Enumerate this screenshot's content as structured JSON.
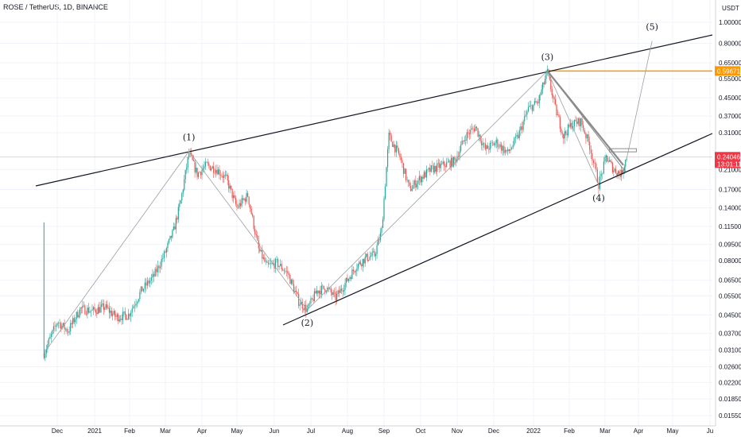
{
  "header": {
    "symbol": "ROSE / TetherUS",
    "interval": "1D",
    "exchange": "BINANCE"
  },
  "colors": {
    "up": "#26a69a",
    "down": "#ef5350",
    "trendline": "#131722",
    "wave_path": "#9e9e9e",
    "resistance": "#ff9800",
    "current_price": "#f23645",
    "grid": "#f0f3fa"
  },
  "chart_data": {
    "type": "candlestick",
    "price_scale": "log",
    "currency": "USDT",
    "y_ticks": [
      "1.00000",
      "0.80000",
      "0.65000",
      "0.55000",
      "0.45000",
      "0.37000",
      "0.31000",
      "0.21000",
      "0.17000",
      "0.14000",
      "0.11500",
      "0.09500",
      "0.08000",
      "0.06500",
      "0.05500",
      "0.04500",
      "0.03700",
      "0.03100",
      "0.02600",
      "0.02200",
      "0.01850",
      "0.01550"
    ],
    "x_ticks": [
      "Dec",
      "2021",
      "Feb",
      "Mar",
      "Apr",
      "May",
      "Jun",
      "Jul",
      "Aug",
      "Sep",
      "Oct",
      "Nov",
      "Dec",
      "2022",
      "Feb",
      "Mar",
      "Apr",
      "May",
      "Ju"
    ],
    "price_tags": [
      {
        "label": "0.59671",
        "value": 0.59671,
        "kind": "resistance"
      },
      {
        "label": "0.24046",
        "value": 0.24046,
        "countdown": "13:01:11",
        "kind": "current"
      }
    ],
    "wave_points": [
      {
        "label": "(1)",
        "date": "2021-03-21",
        "price": 0.255
      },
      {
        "label": "(2)",
        "date": "2021-06-28",
        "price": 0.0475
      },
      {
        "label": "(3)",
        "date": "2022-01-13",
        "price": 0.597
      },
      {
        "label": "(4)",
        "date": "2022-02-24",
        "price": 0.178
      },
      {
        "label": "(5)",
        "date": "2022-04-13",
        "price": 0.82
      }
    ],
    "series": [
      {
        "points": [
          [
            "2020-11-20",
            0.03
          ],
          [
            "2020-12-01",
            0.042
          ],
          [
            "2020-12-10",
            0.038
          ],
          [
            "2020-12-20",
            0.048
          ],
          [
            "2020-12-31",
            0.047
          ],
          [
            "2021-01-10",
            0.049
          ],
          [
            "2021-01-20",
            0.044
          ],
          [
            "2021-01-31",
            0.045
          ],
          [
            "2021-02-10",
            0.058
          ],
          [
            "2021-02-20",
            0.068
          ],
          [
            "2021-02-28",
            0.085
          ],
          [
            "2021-03-08",
            0.11
          ],
          [
            "2021-03-14",
            0.15
          ],
          [
            "2021-03-21",
            0.25
          ],
          [
            "2021-03-28",
            0.2
          ],
          [
            "2021-04-05",
            0.22
          ],
          [
            "2021-04-14",
            0.21
          ],
          [
            "2021-04-22",
            0.19
          ],
          [
            "2021-05-01",
            0.14
          ],
          [
            "2021-05-10",
            0.16
          ],
          [
            "2021-05-19",
            0.09
          ],
          [
            "2021-05-26",
            0.075
          ],
          [
            "2021-06-03",
            0.078
          ],
          [
            "2021-06-12",
            0.07
          ],
          [
            "2021-06-21",
            0.052
          ],
          [
            "2021-06-28",
            0.0475
          ],
          [
            "2021-07-06",
            0.058
          ],
          [
            "2021-07-14",
            0.06
          ],
          [
            "2021-07-22",
            0.054
          ],
          [
            "2021-07-31",
            0.064
          ],
          [
            "2021-08-08",
            0.075
          ],
          [
            "2021-08-16",
            0.082
          ],
          [
            "2021-08-24",
            0.085
          ],
          [
            "2021-08-30",
            0.11
          ],
          [
            "2021-09-05",
            0.3
          ],
          [
            "2021-09-14",
            0.24
          ],
          [
            "2021-09-22",
            0.17
          ],
          [
            "2021-09-30",
            0.19
          ],
          [
            "2021-10-10",
            0.21
          ],
          [
            "2021-10-20",
            0.22
          ],
          [
            "2021-10-30",
            0.23
          ],
          [
            "2021-11-08",
            0.3
          ],
          [
            "2021-11-16",
            0.33
          ],
          [
            "2021-11-24",
            0.26
          ],
          [
            "2021-12-03",
            0.28
          ],
          [
            "2021-12-12",
            0.25
          ],
          [
            "2021-12-20",
            0.3
          ],
          [
            "2021-12-28",
            0.4
          ],
          [
            "2022-01-05",
            0.43
          ],
          [
            "2022-01-13",
            0.59
          ],
          [
            "2022-01-20",
            0.4
          ],
          [
            "2022-01-27",
            0.3
          ],
          [
            "2022-02-03",
            0.34
          ],
          [
            "2022-02-10",
            0.35
          ],
          [
            "2022-02-17",
            0.27
          ],
          [
            "2022-02-24",
            0.18
          ],
          [
            "2022-03-02",
            0.24
          ],
          [
            "2022-03-09",
            0.21
          ],
          [
            "2022-03-16",
            0.2
          ],
          [
            "2022-03-21",
            0.24
          ]
        ]
      }
    ]
  }
}
